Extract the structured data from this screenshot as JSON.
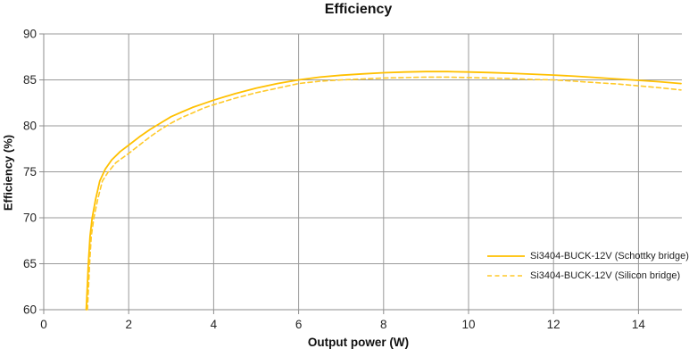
{
  "chart_data": {
    "type": "line",
    "title": "Efficiency",
    "xlabel": "Output power (W)",
    "ylabel": "Efficiency (%)",
    "xlim": [
      0,
      15
    ],
    "ylim": [
      60,
      90
    ],
    "x_ticks": [
      0,
      2,
      4,
      6,
      8,
      10,
      12,
      14
    ],
    "y_ticks": [
      60,
      65,
      70,
      75,
      80,
      85,
      90
    ],
    "grid": true,
    "legend_position": "inside-right",
    "colors": {
      "gridline": "#999999",
      "axis": "#8c8c8c",
      "tick_text": "#262626",
      "title_text": "#111111"
    },
    "series": [
      {
        "name": "Si3404-BUCK-12V (Schottky bridge)",
        "style": "solid",
        "color": "#FFC000",
        "points": [
          [
            1.0,
            60
          ],
          [
            1.02,
            62
          ],
          [
            1.05,
            65
          ],
          [
            1.09,
            68
          ],
          [
            1.14,
            70
          ],
          [
            1.22,
            72
          ],
          [
            1.32,
            74
          ],
          [
            1.45,
            75.3
          ],
          [
            1.6,
            76.3
          ],
          [
            1.8,
            77.2
          ],
          [
            2.0,
            77.9
          ],
          [
            2.25,
            78.8
          ],
          [
            2.5,
            79.6
          ],
          [
            2.75,
            80.3
          ],
          [
            3.0,
            81.0
          ],
          [
            3.25,
            81.5
          ],
          [
            3.5,
            82.0
          ],
          [
            3.75,
            82.4
          ],
          [
            4.0,
            82.8
          ],
          [
            4.5,
            83.5
          ],
          [
            5.0,
            84.1
          ],
          [
            5.5,
            84.6
          ],
          [
            6.0,
            85.0
          ],
          [
            6.5,
            85.3
          ],
          [
            7.0,
            85.5
          ],
          [
            7.5,
            85.65
          ],
          [
            8.0,
            85.78
          ],
          [
            8.5,
            85.85
          ],
          [
            9.0,
            85.9
          ],
          [
            9.5,
            85.9
          ],
          [
            10.0,
            85.85
          ],
          [
            10.5,
            85.8
          ],
          [
            11.0,
            85.72
          ],
          [
            11.5,
            85.62
          ],
          [
            12.0,
            85.52
          ],
          [
            12.5,
            85.4
          ],
          [
            13.0,
            85.25
          ],
          [
            13.5,
            85.1
          ],
          [
            14.0,
            84.95
          ],
          [
            14.5,
            84.8
          ],
          [
            15.0,
            84.6
          ]
        ]
      },
      {
        "name": "Si3404-BUCK-12V (Silicon bridge)",
        "style": "dashed",
        "color": "#FFC928",
        "points": [
          [
            1.03,
            60
          ],
          [
            1.05,
            62
          ],
          [
            1.08,
            65
          ],
          [
            1.12,
            68
          ],
          [
            1.18,
            70
          ],
          [
            1.27,
            72
          ],
          [
            1.38,
            74
          ],
          [
            1.52,
            75
          ],
          [
            1.7,
            76
          ],
          [
            2.0,
            77.0
          ],
          [
            2.25,
            77.9
          ],
          [
            2.5,
            78.8
          ],
          [
            2.75,
            79.6
          ],
          [
            3.0,
            80.3
          ],
          [
            3.25,
            80.9
          ],
          [
            3.5,
            81.4
          ],
          [
            3.75,
            81.9
          ],
          [
            4.0,
            82.3
          ],
          [
            4.5,
            83.0
          ],
          [
            5.0,
            83.6
          ],
          [
            5.5,
            84.1
          ],
          [
            6.0,
            84.6
          ],
          [
            6.5,
            84.85
          ],
          [
            7.0,
            85.0
          ],
          [
            7.5,
            85.1
          ],
          [
            8.0,
            85.2
          ],
          [
            8.5,
            85.25
          ],
          [
            9.0,
            85.3
          ],
          [
            9.5,
            85.3
          ],
          [
            10.0,
            85.25
          ],
          [
            10.5,
            85.2
          ],
          [
            11.0,
            85.15
          ],
          [
            11.5,
            85.05
          ],
          [
            12.0,
            85.0
          ],
          [
            12.5,
            84.85
          ],
          [
            13.0,
            84.7
          ],
          [
            13.5,
            84.55
          ],
          [
            14.0,
            84.35
          ],
          [
            14.5,
            84.15
          ],
          [
            15.0,
            83.9
          ]
        ]
      }
    ]
  }
}
